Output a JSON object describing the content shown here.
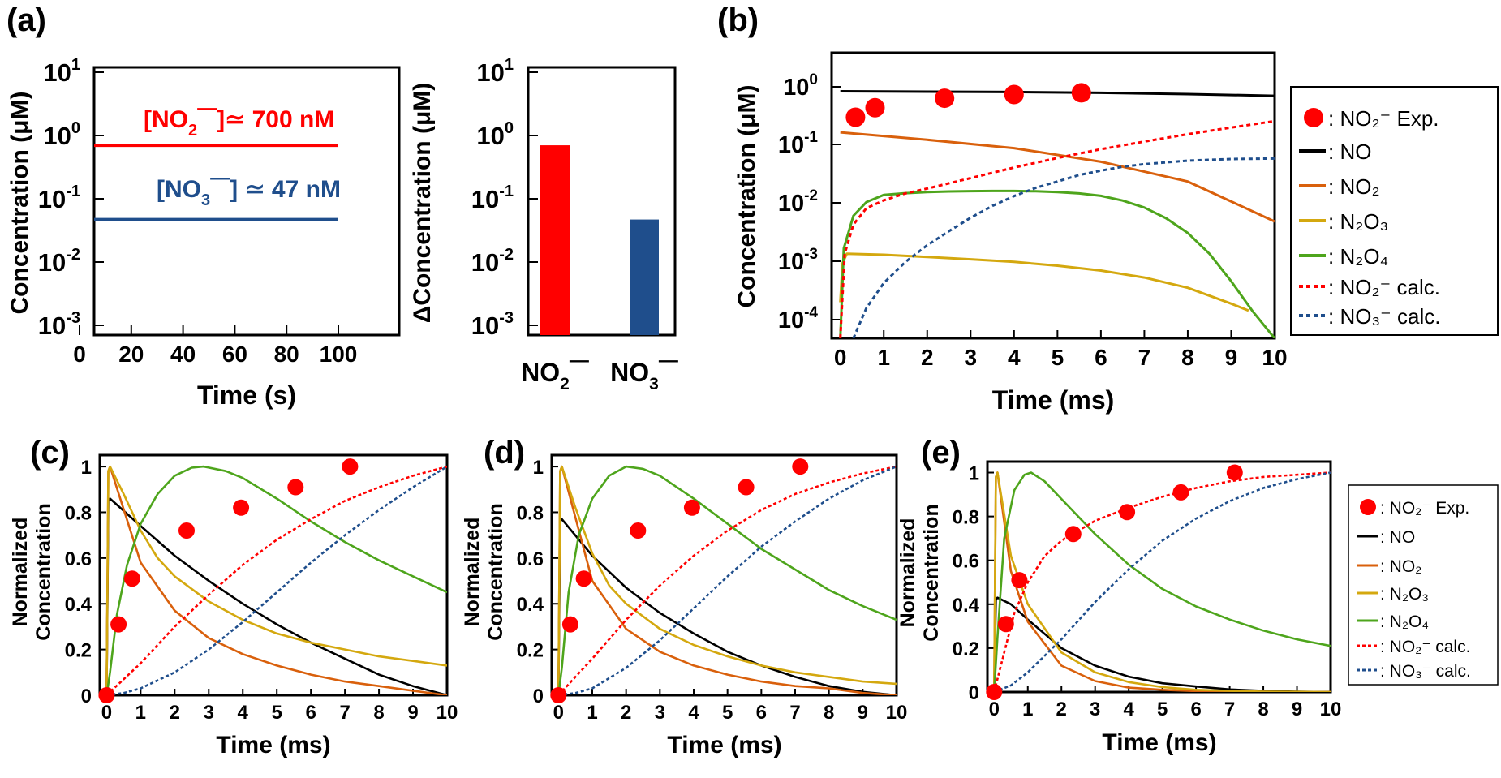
{
  "colors": {
    "red": "#ff0000",
    "blue": "#1f4e8c",
    "black": "#000000",
    "orange": "#d9600c",
    "gold": "#d4a80f",
    "green": "#4ea51c"
  },
  "legend": {
    "no2exp": "NO₂⁻ Exp.",
    "no": "NO",
    "no2": "NO₂",
    "n2o3": "N₂O₃",
    "n2o4": "N₂O₄",
    "no2calc": "NO₂⁻ calc.",
    "no3calc": "NO₃⁻ calc."
  },
  "chart_data": [
    {
      "panel": "(a)",
      "type": "line",
      "xlabel": "Time (s)",
      "ylabel": "Concentration (μM)",
      "xlim": [
        0,
        100
      ],
      "ylim": [
        0.0005,
        10
      ],
      "yscale": "log",
      "xticks": [
        0,
        20,
        40,
        60,
        80,
        100
      ],
      "series": [
        {
          "color": "#ff0000",
          "x": [
            0,
            0.2,
            100
          ],
          "y": [
            0.0005,
            0.7,
            0.7
          ]
        },
        {
          "color": "#1f4e8c",
          "x": [
            0,
            0.2,
            100
          ],
          "y": [
            0.0005,
            0.047,
            0.047
          ]
        }
      ],
      "annotations": [
        "[NO₂⁻] ≃ 700 nM",
        "[NO₃⁻] ≃ 47 nM"
      ]
    },
    {
      "panel": "(a)",
      "type": "bar",
      "ylabel": "ΔConcentration (μM)",
      "ylim": [
        0.0005,
        10
      ],
      "yscale": "log",
      "categories": [
        "NO₂⁻",
        "NO₃⁻"
      ],
      "values": [
        0.7,
        0.047
      ],
      "colors": [
        "#ff0000",
        "#1f4e8c"
      ]
    },
    {
      "panel": "(b)",
      "type": "line",
      "xlabel": "Time (ms)",
      "ylabel": "Concentration (μM)",
      "xlim": [
        -0.2,
        10
      ],
      "ylim": [
        5e-05,
        3
      ],
      "yscale": "log",
      "xticks": [
        0,
        1,
        2,
        3,
        4,
        5,
        6,
        7,
        8,
        9,
        10
      ],
      "series": [
        {
          "name": "NO₂⁻ Exp.",
          "kind": "scatter",
          "x": [
            0.35,
            0.8,
            2.4,
            4.0,
            5.55
          ],
          "y": [
            0.25,
            0.36,
            0.52,
            0.6,
            0.64
          ]
        },
        {
          "name": "NO",
          "x": [
            0,
            2,
            4,
            6,
            8,
            10
          ],
          "y": [
            0.68,
            0.67,
            0.66,
            0.64,
            0.61,
            0.57
          ]
        },
        {
          "name": "NO₂",
          "x": [
            0,
            2,
            4,
            6,
            8,
            10
          ],
          "y": [
            0.14,
            0.105,
            0.076,
            0.045,
            0.021,
            0.0045
          ]
        },
        {
          "name": "N₂O₃",
          "x": [
            0,
            0.05,
            0.15,
            1,
            2,
            3,
            4,
            5,
            6,
            7,
            8,
            9,
            9.4
          ],
          "y": [
            0.0002,
            0.0009,
            0.0013,
            0.00125,
            0.00115,
            0.00105,
            0.00095,
            0.00082,
            0.00068,
            0.00052,
            0.00035,
            0.00019,
            0.000145
          ]
        },
        {
          "name": "N₂O₄",
          "x": [
            0,
            0.08,
            0.3,
            0.6,
            1,
            1.5,
            2,
            2.5,
            3,
            3.5,
            4,
            4.5,
            5,
            5.5,
            6,
            6.5,
            7,
            7.5,
            8,
            8.5,
            9,
            9.5,
            10
          ],
          "y": [
            5e-05,
            0.0016,
            0.0056,
            0.0095,
            0.0125,
            0.0134,
            0.014,
            0.0143,
            0.0145,
            0.0146,
            0.0146,
            0.0144,
            0.014,
            0.0133,
            0.0121,
            0.0101,
            0.0077,
            0.0051,
            0.0029,
            0.0013,
            0.00045,
            0.00014,
            5e-05
          ]
        },
        {
          "name": "NO₂⁻ calc.",
          "x": [
            0,
            0.1,
            0.3,
            0.6,
            1,
            1.5,
            2,
            3,
            4,
            5,
            6,
            7,
            8,
            9,
            10
          ],
          "y": [
            5e-05,
            0.0013,
            0.004,
            0.0075,
            0.0102,
            0.0133,
            0.016,
            0.024,
            0.036,
            0.052,
            0.073,
            0.098,
            0.13,
            0.168,
            0.215
          ]
        },
        {
          "name": "NO₃⁻ calc.",
          "x": [
            0.3,
            0.6,
            1,
            1.5,
            2,
            2.5,
            3,
            3.5,
            4,
            4.5,
            5,
            5.5,
            6,
            6.5,
            7,
            8,
            9,
            10
          ],
          "y": [
            5e-05,
            0.00016,
            0.00042,
            0.00095,
            0.0018,
            0.0031,
            0.0052,
            0.0082,
            0.012,
            0.0165,
            0.021,
            0.027,
            0.032,
            0.037,
            0.041,
            0.047,
            0.05,
            0.051
          ]
        }
      ]
    },
    {
      "panel": "(c)",
      "type": "line",
      "xlabel": "Time (ms)",
      "ylabel": "Normalized Concentration",
      "xlim": [
        -0.2,
        10
      ],
      "ylim": [
        0,
        1.05
      ],
      "xticks": [
        0,
        1,
        2,
        3,
        4,
        5,
        6,
        7,
        8,
        9,
        10
      ],
      "yticks": [
        0,
        0.2,
        0.4,
        0.6,
        0.8,
        1
      ],
      "series": [
        {
          "name": "NO₂⁻ Exp.",
          "kind": "scatter",
          "x": [
            0,
            0.35,
            0.75,
            2.35,
            3.95,
            5.55,
            7.15
          ],
          "y": [
            0,
            0.31,
            0.51,
            0.72,
            0.82,
            0.91,
            1.0
          ]
        },
        {
          "name": "NO",
          "x": [
            0,
            0.05,
            0.1,
            1,
            2,
            3,
            4,
            5,
            6,
            7,
            8,
            9,
            10
          ],
          "y": [
            0,
            0.85,
            0.86,
            0.74,
            0.61,
            0.5,
            0.4,
            0.31,
            0.23,
            0.16,
            0.09,
            0.04,
            0.0
          ]
        },
        {
          "name": "NO₂",
          "x": [
            0,
            0.05,
            0.1,
            1,
            2,
            3,
            4,
            5,
            6,
            7,
            8,
            9,
            10
          ],
          "y": [
            0,
            0.98,
            1.0,
            0.58,
            0.37,
            0.25,
            0.18,
            0.13,
            0.09,
            0.06,
            0.04,
            0.02,
            0.0
          ]
        },
        {
          "name": "N₂O₃",
          "x": [
            0,
            0.05,
            0.1,
            0.5,
            1,
            1.5,
            2,
            3,
            4,
            5,
            6,
            7,
            8,
            9,
            10
          ],
          "y": [
            0,
            0.98,
            1.0,
            0.88,
            0.72,
            0.6,
            0.52,
            0.41,
            0.33,
            0.27,
            0.23,
            0.2,
            0.17,
            0.15,
            0.13
          ]
        },
        {
          "name": "N₂O₄",
          "x": [
            0,
            0.1,
            0.3,
            0.6,
            1,
            1.5,
            2,
            2.5,
            2.85,
            3.5,
            4,
            5,
            6,
            7,
            8,
            9,
            10
          ],
          "y": [
            0,
            0.1,
            0.35,
            0.57,
            0.75,
            0.88,
            0.96,
            0.995,
            1.0,
            0.98,
            0.95,
            0.86,
            0.76,
            0.67,
            0.59,
            0.52,
            0.45
          ]
        },
        {
          "name": "NO₂⁻ calc.",
          "x": [
            0,
            0.5,
            1,
            2,
            3,
            4,
            5,
            6,
            7,
            8,
            9,
            10
          ],
          "y": [
            0,
            0.07,
            0.14,
            0.3,
            0.44,
            0.57,
            0.68,
            0.77,
            0.85,
            0.91,
            0.96,
            1.0
          ]
        },
        {
          "name": "NO₃⁻ calc.",
          "x": [
            0,
            0.5,
            1,
            2,
            3,
            4,
            5,
            6,
            7,
            8,
            9,
            10
          ],
          "y": [
            0,
            0.01,
            0.03,
            0.1,
            0.2,
            0.32,
            0.45,
            0.58,
            0.7,
            0.81,
            0.91,
            1.0
          ]
        }
      ]
    },
    {
      "panel": "(d)",
      "type": "line",
      "xlabel": "Time (ms)",
      "ylabel": "Normalized Concentration",
      "xlim": [
        -0.2,
        10
      ],
      "ylim": [
        0,
        1.05
      ],
      "xticks": [
        0,
        1,
        2,
        3,
        4,
        5,
        6,
        7,
        8,
        9,
        10
      ],
      "yticks": [
        0,
        0.2,
        0.4,
        0.6,
        0.8,
        1
      ],
      "series": [
        {
          "name": "NO₂⁻ Exp.",
          "kind": "scatter",
          "x": [
            0,
            0.35,
            0.75,
            2.35,
            3.95,
            5.55,
            7.15
          ],
          "y": [
            0,
            0.31,
            0.51,
            0.72,
            0.82,
            0.91,
            1.0
          ]
        },
        {
          "name": "NO",
          "x": [
            0,
            0.05,
            0.1,
            1,
            2,
            3,
            4,
            5,
            6,
            7,
            8,
            9,
            10
          ],
          "y": [
            0,
            0.76,
            0.77,
            0.61,
            0.47,
            0.36,
            0.27,
            0.19,
            0.13,
            0.08,
            0.04,
            0.015,
            0.0
          ]
        },
        {
          "name": "NO₂",
          "x": [
            0,
            0.05,
            0.1,
            1,
            2,
            3,
            4,
            5,
            6,
            7,
            8,
            9,
            10
          ],
          "y": [
            0,
            0.98,
            1.0,
            0.5,
            0.29,
            0.19,
            0.13,
            0.09,
            0.06,
            0.04,
            0.03,
            0.01,
            0.0
          ]
        },
        {
          "name": "N₂O₃",
          "x": [
            0,
            0.05,
            0.1,
            0.5,
            1,
            1.5,
            2,
            3,
            4,
            5,
            6,
            7,
            8,
            9,
            10
          ],
          "y": [
            0,
            0.98,
            1.0,
            0.82,
            0.62,
            0.48,
            0.4,
            0.29,
            0.22,
            0.17,
            0.13,
            0.1,
            0.08,
            0.06,
            0.05
          ]
        },
        {
          "name": "N₂O₄",
          "x": [
            0,
            0.1,
            0.3,
            0.6,
            1,
            1.5,
            2,
            2.5,
            3,
            4,
            5,
            6,
            7,
            8,
            9,
            10
          ],
          "y": [
            0,
            0.12,
            0.45,
            0.7,
            0.86,
            0.96,
            1.0,
            0.99,
            0.96,
            0.86,
            0.75,
            0.64,
            0.55,
            0.46,
            0.39,
            0.33
          ]
        },
        {
          "name": "NO₂⁻ calc.",
          "x": [
            0,
            0.5,
            1,
            2,
            3,
            4,
            5,
            6,
            7,
            8,
            9,
            10
          ],
          "y": [
            0,
            0.08,
            0.16,
            0.33,
            0.48,
            0.61,
            0.72,
            0.81,
            0.88,
            0.93,
            0.97,
            1.0
          ]
        },
        {
          "name": "NO₃⁻ calc.",
          "x": [
            0,
            0.5,
            1,
            2,
            3,
            4,
            5,
            6,
            7,
            8,
            9,
            10
          ],
          "y": [
            0,
            0.01,
            0.03,
            0.12,
            0.24,
            0.38,
            0.52,
            0.65,
            0.76,
            0.86,
            0.94,
            1.0
          ]
        }
      ]
    },
    {
      "panel": "(e)",
      "type": "line",
      "xlabel": "Time (ms)",
      "ylabel": "Normalized Concentration",
      "xlim": [
        -0.2,
        10
      ],
      "ylim": [
        0,
        1.05
      ],
      "xticks": [
        0,
        1,
        2,
        3,
        4,
        5,
        6,
        7,
        8,
        9,
        10
      ],
      "yticks": [
        0,
        0.2,
        0.4,
        0.6,
        0.8,
        1
      ],
      "series": [
        {
          "name": "NO₂⁻ Exp.",
          "kind": "scatter",
          "x": [
            0,
            0.35,
            0.75,
            2.35,
            3.95,
            5.55,
            7.15
          ],
          "y": [
            0,
            0.31,
            0.51,
            0.72,
            0.82,
            0.91,
            1.0
          ]
        },
        {
          "name": "NO",
          "x": [
            0,
            0.05,
            0.1,
            0.5,
            1,
            2,
            3,
            4,
            5,
            6,
            7,
            8,
            9,
            10
          ],
          "y": [
            0,
            0.42,
            0.43,
            0.4,
            0.33,
            0.2,
            0.12,
            0.07,
            0.04,
            0.025,
            0.012,
            0.005,
            0.002,
            0.0
          ]
        },
        {
          "name": "NO₂",
          "x": [
            0,
            0.05,
            0.1,
            0.5,
            1,
            2,
            3,
            4,
            5,
            6,
            7,
            8,
            9,
            10
          ],
          "y": [
            0,
            0.98,
            1.0,
            0.55,
            0.32,
            0.12,
            0.05,
            0.02,
            0.01,
            0.004,
            0.002,
            0.001,
            0.0,
            0.0
          ]
        },
        {
          "name": "N₂O₃",
          "x": [
            0,
            0.05,
            0.1,
            0.5,
            1,
            2,
            3,
            4,
            5,
            6,
            7,
            8,
            9,
            10
          ],
          "y": [
            0,
            0.98,
            1.0,
            0.62,
            0.4,
            0.18,
            0.09,
            0.045,
            0.022,
            0.01,
            0.005,
            0.002,
            0.001,
            0.0
          ]
        },
        {
          "name": "N₂O₄",
          "x": [
            0,
            0.1,
            0.3,
            0.6,
            0.9,
            1.1,
            1.5,
            2,
            3,
            4,
            5,
            6,
            7,
            8,
            9,
            10
          ],
          "y": [
            0,
            0.25,
            0.7,
            0.92,
            0.99,
            1.0,
            0.96,
            0.88,
            0.72,
            0.58,
            0.47,
            0.39,
            0.33,
            0.28,
            0.24,
            0.21
          ]
        },
        {
          "name": "NO₂⁻ calc.",
          "x": [
            0,
            0.3,
            0.6,
            1,
            1.5,
            2,
            3,
            4,
            5,
            6,
            7,
            8,
            9,
            10
          ],
          "y": [
            0,
            0.18,
            0.36,
            0.5,
            0.62,
            0.69,
            0.78,
            0.84,
            0.89,
            0.93,
            0.96,
            0.98,
            0.99,
            1.0
          ]
        },
        {
          "name": "NO₃⁻ calc.",
          "x": [
            0,
            0.5,
            1,
            2,
            3,
            4,
            5,
            6,
            7,
            8,
            9,
            10
          ],
          "y": [
            0,
            0.03,
            0.09,
            0.24,
            0.41,
            0.56,
            0.69,
            0.79,
            0.87,
            0.93,
            0.97,
            1.0
          ]
        }
      ]
    }
  ]
}
